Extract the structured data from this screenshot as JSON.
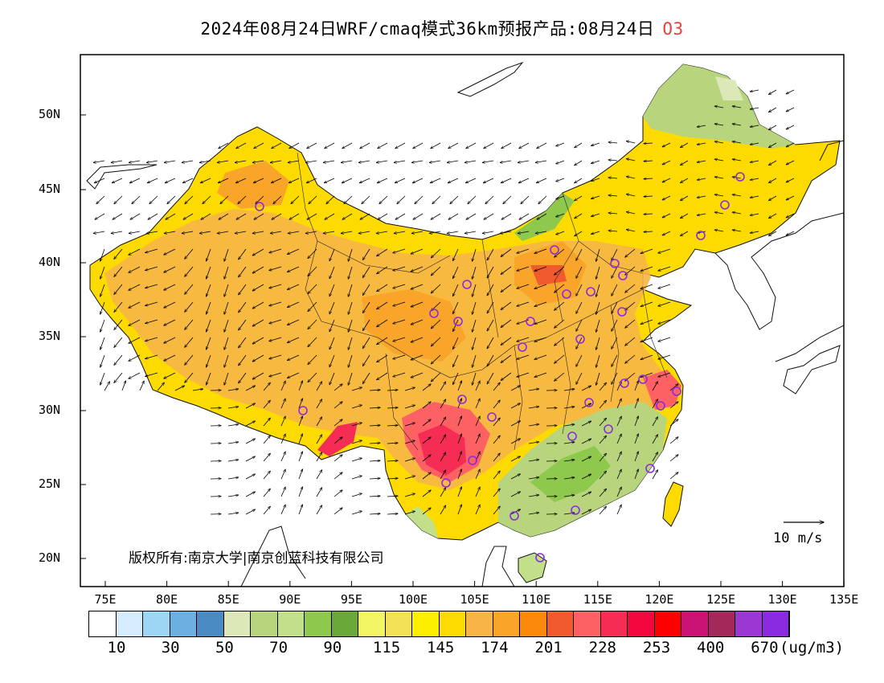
{
  "header": {
    "title": "2024年08月24日WRF/cmaq模式36km预报产品:08月24日",
    "species": "O3"
  },
  "axes": {
    "lat_labels": [
      "50N",
      "45N",
      "40N",
      "35N",
      "30N",
      "25N",
      "20N"
    ],
    "lon_labels": [
      "75E",
      "80E",
      "85E",
      "90E",
      "95E",
      "100E",
      "105E",
      "110E",
      "115E",
      "120E",
      "125E",
      "130E",
      "135E"
    ]
  },
  "map": {
    "copyright": "版权所有:南京大学|南京创蓝科技有限公司",
    "wind_reference": "10 m/s"
  },
  "colorbar": {
    "colors": [
      "#ffffff",
      "#d4ecfb",
      "#9dd6f5",
      "#6bb0e0",
      "#4a8bc4",
      "#dde8b8",
      "#b8d57e",
      "#c2e08a",
      "#8ec94e",
      "#6aa83a",
      "#f2f564",
      "#f3e255",
      "#fdef00",
      "#fddb00",
      "#f7b547",
      "#f9a52a",
      "#fb8a0a",
      "#f05a2c",
      "#fd6164",
      "#f52d54",
      "#f4063e",
      "#fe0000",
      "#cb1374",
      "#a3295a",
      "#9b37d3",
      "#8a2be2"
    ],
    "labels": [
      "10",
      "30",
      "50",
      "70",
      "90",
      "115",
      "145",
      "174",
      "201",
      "228",
      "253",
      "400",
      "670"
    ],
    "unit": "(ug/m3)"
  }
}
